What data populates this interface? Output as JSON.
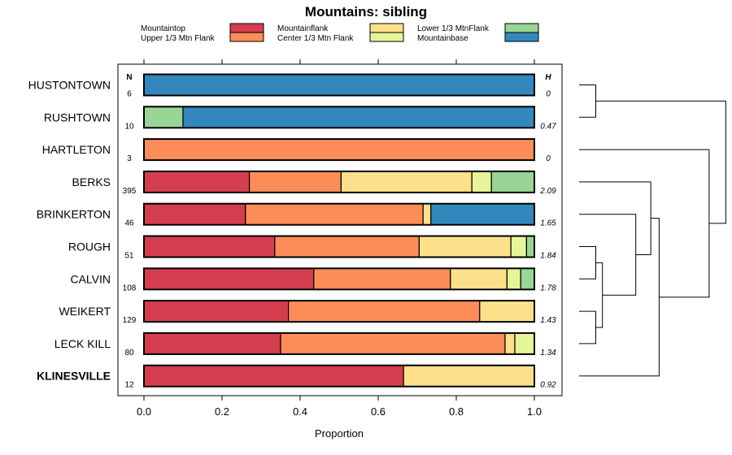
{
  "chart_data": {
    "type": "bar",
    "orientation": "horizontal",
    "stacked": true,
    "title": "Mountains: sibling",
    "xlabel": "Proportion",
    "xlim": [
      0,
      1
    ],
    "x_ticks": [
      "0.0",
      "0.2",
      "0.4",
      "0.6",
      "0.8",
      "1.0"
    ],
    "column_headers": {
      "n": "N",
      "h": "H"
    },
    "segment_categories": [
      {
        "name": "Mountaintop",
        "color": "#d53e4f"
      },
      {
        "name": "Upper 1/3 Mtn Flank",
        "color": "#fc8d59"
      },
      {
        "name": "Mountainflank",
        "color": "#fee08b"
      },
      {
        "name": "Center 1/3 Mtn Flank",
        "color": "#e6f598"
      },
      {
        "name": "Lower 1/3 MtnFlank",
        "color": "#99d594"
      },
      {
        "name": "Mountainbase",
        "color": "#3288bd"
      }
    ],
    "rows": [
      {
        "label": "HUSTONTOWN",
        "bold": false,
        "n": "6",
        "h": "0",
        "values": [
          0,
          0,
          0,
          0,
          0,
          1.0
        ]
      },
      {
        "label": "RUSHTOWN",
        "bold": false,
        "n": "10",
        "h": "0.47",
        "values": [
          0,
          0,
          0,
          0,
          0.1,
          0.9
        ]
      },
      {
        "label": "HARTLETON",
        "bold": false,
        "n": "3",
        "h": "0",
        "values": [
          0,
          1.0,
          0,
          0,
          0,
          0
        ]
      },
      {
        "label": "BERKS",
        "bold": false,
        "n": "395",
        "h": "2.09",
        "values": [
          0.27,
          0.235,
          0.335,
          0.05,
          0.11,
          0
        ]
      },
      {
        "label": "BRINKERTON",
        "bold": false,
        "n": "46",
        "h": "1.65",
        "values": [
          0.26,
          0.455,
          0.02,
          0,
          0,
          0.265
        ]
      },
      {
        "label": "ROUGH",
        "bold": false,
        "n": "51",
        "h": "1.84",
        "values": [
          0.335,
          0.37,
          0.235,
          0.04,
          0.02,
          0
        ]
      },
      {
        "label": "CALVIN",
        "bold": false,
        "n": "108",
        "h": "1.78",
        "values": [
          0.435,
          0.35,
          0.145,
          0.035,
          0.035,
          0
        ]
      },
      {
        "label": "WEIKERT",
        "bold": false,
        "n": "129",
        "h": "1.43",
        "values": [
          0.37,
          0.49,
          0.14,
          0,
          0,
          0
        ]
      },
      {
        "label": "LECK KILL",
        "bold": false,
        "n": "80",
        "h": "1.34",
        "values": [
          0.35,
          0.575,
          0.025,
          0.05,
          0,
          0
        ]
      },
      {
        "label": "KLINESVILLE",
        "bold": true,
        "n": "12",
        "h": "0.92",
        "values": [
          0.665,
          0,
          0.335,
          0,
          0,
          0
        ]
      }
    ],
    "dendrogram": {
      "leaf_order": [
        "HUSTONTOWN",
        "RUSHTOWN",
        "HARTLETON",
        "BERKS",
        "BRINKERTON",
        "ROUGH",
        "CALVIN",
        "WEIKERT",
        "LECK KILL",
        "KLINESVILLE"
      ],
      "merges": [
        {
          "a": 0,
          "b": 1,
          "height": 0.1
        },
        {
          "a": 5,
          "b": 6,
          "height": 0.1
        },
        {
          "a": 7,
          "b": 8,
          "height": 0.1
        },
        {
          "a": "m1",
          "b": "m2",
          "height": 0.14
        },
        {
          "a": 4,
          "b": "m3",
          "height": 0.34
        },
        {
          "a": 3,
          "b": "m4",
          "height": 0.43
        },
        {
          "a": "m5",
          "b": 9,
          "height": 0.48
        },
        {
          "a": 2,
          "b": "m6",
          "height": 0.78
        },
        {
          "a": "m0",
          "b": "m7",
          "height": 0.88
        }
      ]
    }
  }
}
